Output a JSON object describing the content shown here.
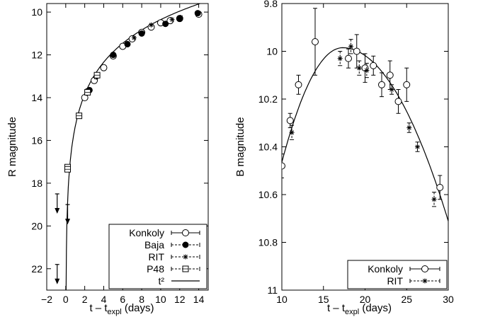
{
  "chart_data": [
    {
      "type": "scatter",
      "xlabel": "t – t",
      "xlabel_sub": "expl",
      "xlabel_unit": " (days)",
      "ylabel": "R magnitude",
      "xlim": [
        -2,
        15
      ],
      "ylim": [
        23,
        9.6
      ],
      "y_inverted": true,
      "xticks": [
        "−2",
        "0",
        "2",
        "4",
        "6",
        "8",
        "10",
        "12",
        "14"
      ],
      "xtick_values": [
        -2,
        0,
        2,
        4,
        6,
        8,
        10,
        12,
        14
      ],
      "yticks": [
        "10",
        "12",
        "14",
        "16",
        "18",
        "20",
        "22"
      ],
      "ytick_values": [
        10,
        12,
        14,
        16,
        18,
        20,
        22
      ],
      "legend_position": "bottom-right",
      "series": [
        {
          "name": "Konkoly",
          "marker": "open-circle",
          "points": [
            [
              2.0,
              14.0
            ],
            [
              3.0,
              13.2
            ],
            [
              4.0,
              12.6
            ],
            [
              5.0,
              12.05
            ],
            [
              6.0,
              11.6
            ],
            [
              7.0,
              11.25
            ],
            [
              8.0,
              10.95
            ],
            [
              9.0,
              10.7
            ],
            [
              10.0,
              10.5
            ],
            [
              11.0,
              10.4
            ],
            [
              12.0,
              10.3
            ],
            [
              14.0,
              10.1
            ]
          ]
        },
        {
          "name": "Baja",
          "marker": "filled-circle",
          "points": [
            [
              2.3,
              13.7
            ],
            [
              2.5,
              13.65
            ],
            [
              5.0,
              12.0
            ],
            [
              6.5,
              11.5
            ],
            [
              8.0,
              11.0
            ],
            [
              10.5,
              10.55
            ],
            [
              12.0,
              10.3
            ],
            [
              13.9,
              10.05
            ]
          ]
        },
        {
          "name": "RIT",
          "marker": "star",
          "points": [
            [
              2.2,
              13.8
            ],
            [
              3.2,
              13.05
            ],
            [
              7.2,
              11.2
            ],
            [
              9.0,
              10.6
            ],
            [
              11.2,
              10.35
            ],
            [
              12.1,
              10.25
            ]
          ]
        },
        {
          "name": "P48",
          "marker": "open-square",
          "points": [
            [
              0.2,
              17.25
            ],
            [
              0.2,
              17.35
            ],
            [
              1.4,
              14.85
            ],
            [
              2.3,
              13.75
            ],
            [
              3.3,
              12.95
            ]
          ]
        },
        {
          "name": "t²",
          "marker": "line"
        }
      ],
      "upper_limits": [
        [
          -0.9,
          18.5
        ],
        [
          -0.9,
          21.8
        ],
        [
          0.2,
          19.0
        ]
      ]
    },
    {
      "type": "scatter",
      "xlabel": "t – t",
      "xlabel_sub": "expl",
      "xlabel_unit": " (days)",
      "ylabel": "B magnitude",
      "xlim": [
        10,
        30
      ],
      "ylim": [
        11.0,
        9.8
      ],
      "y_inverted": true,
      "xticks": [
        "10",
        "15",
        "20",
        "25",
        "30"
      ],
      "xtick_values": [
        10,
        15,
        20,
        25,
        30
      ],
      "yticks": [
        "9.8",
        "10",
        "10.2",
        "10.4",
        "10.6",
        "10.8",
        "11"
      ],
      "ytick_values": [
        9.8,
        10.0,
        10.2,
        10.4,
        10.6,
        10.8,
        11.0
      ],
      "legend_position": "bottom-right",
      "series": [
        {
          "name": "Konkoly",
          "marker": "open-circle",
          "points": [
            [
              10.0,
              10.48,
              0.05
            ],
            [
              11.0,
              10.29,
              0.03
            ],
            [
              12.0,
              10.14,
              0.04
            ],
            [
              14.0,
              9.96,
              0.14
            ],
            [
              18.0,
              10.03,
              0.04
            ],
            [
              19.0,
              10.0,
              0.07
            ],
            [
              20.0,
              10.07,
              0.06
            ],
            [
              21.0,
              10.06,
              0.04
            ],
            [
              22.0,
              10.14,
              0.05
            ],
            [
              23.0,
              10.1,
              0.06
            ],
            [
              24.0,
              10.21,
              0.05
            ],
            [
              25.0,
              10.14,
              0.07
            ],
            [
              29.0,
              10.57,
              0.05
            ]
          ]
        },
        {
          "name": "RIT",
          "marker": "star",
          "points": [
            [
              11.2,
              10.34,
              0.03
            ],
            [
              17.0,
              10.03,
              0.03
            ],
            [
              18.3,
              9.98,
              0.03
            ],
            [
              19.3,
              10.07,
              0.03
            ],
            [
              20.2,
              10.08,
              0.03
            ],
            [
              23.2,
              10.16,
              0.02
            ],
            [
              25.3,
              10.32,
              0.02
            ],
            [
              26.3,
              10.4,
              0.02
            ],
            [
              28.3,
              10.62,
              0.03
            ]
          ]
        }
      ]
    }
  ]
}
